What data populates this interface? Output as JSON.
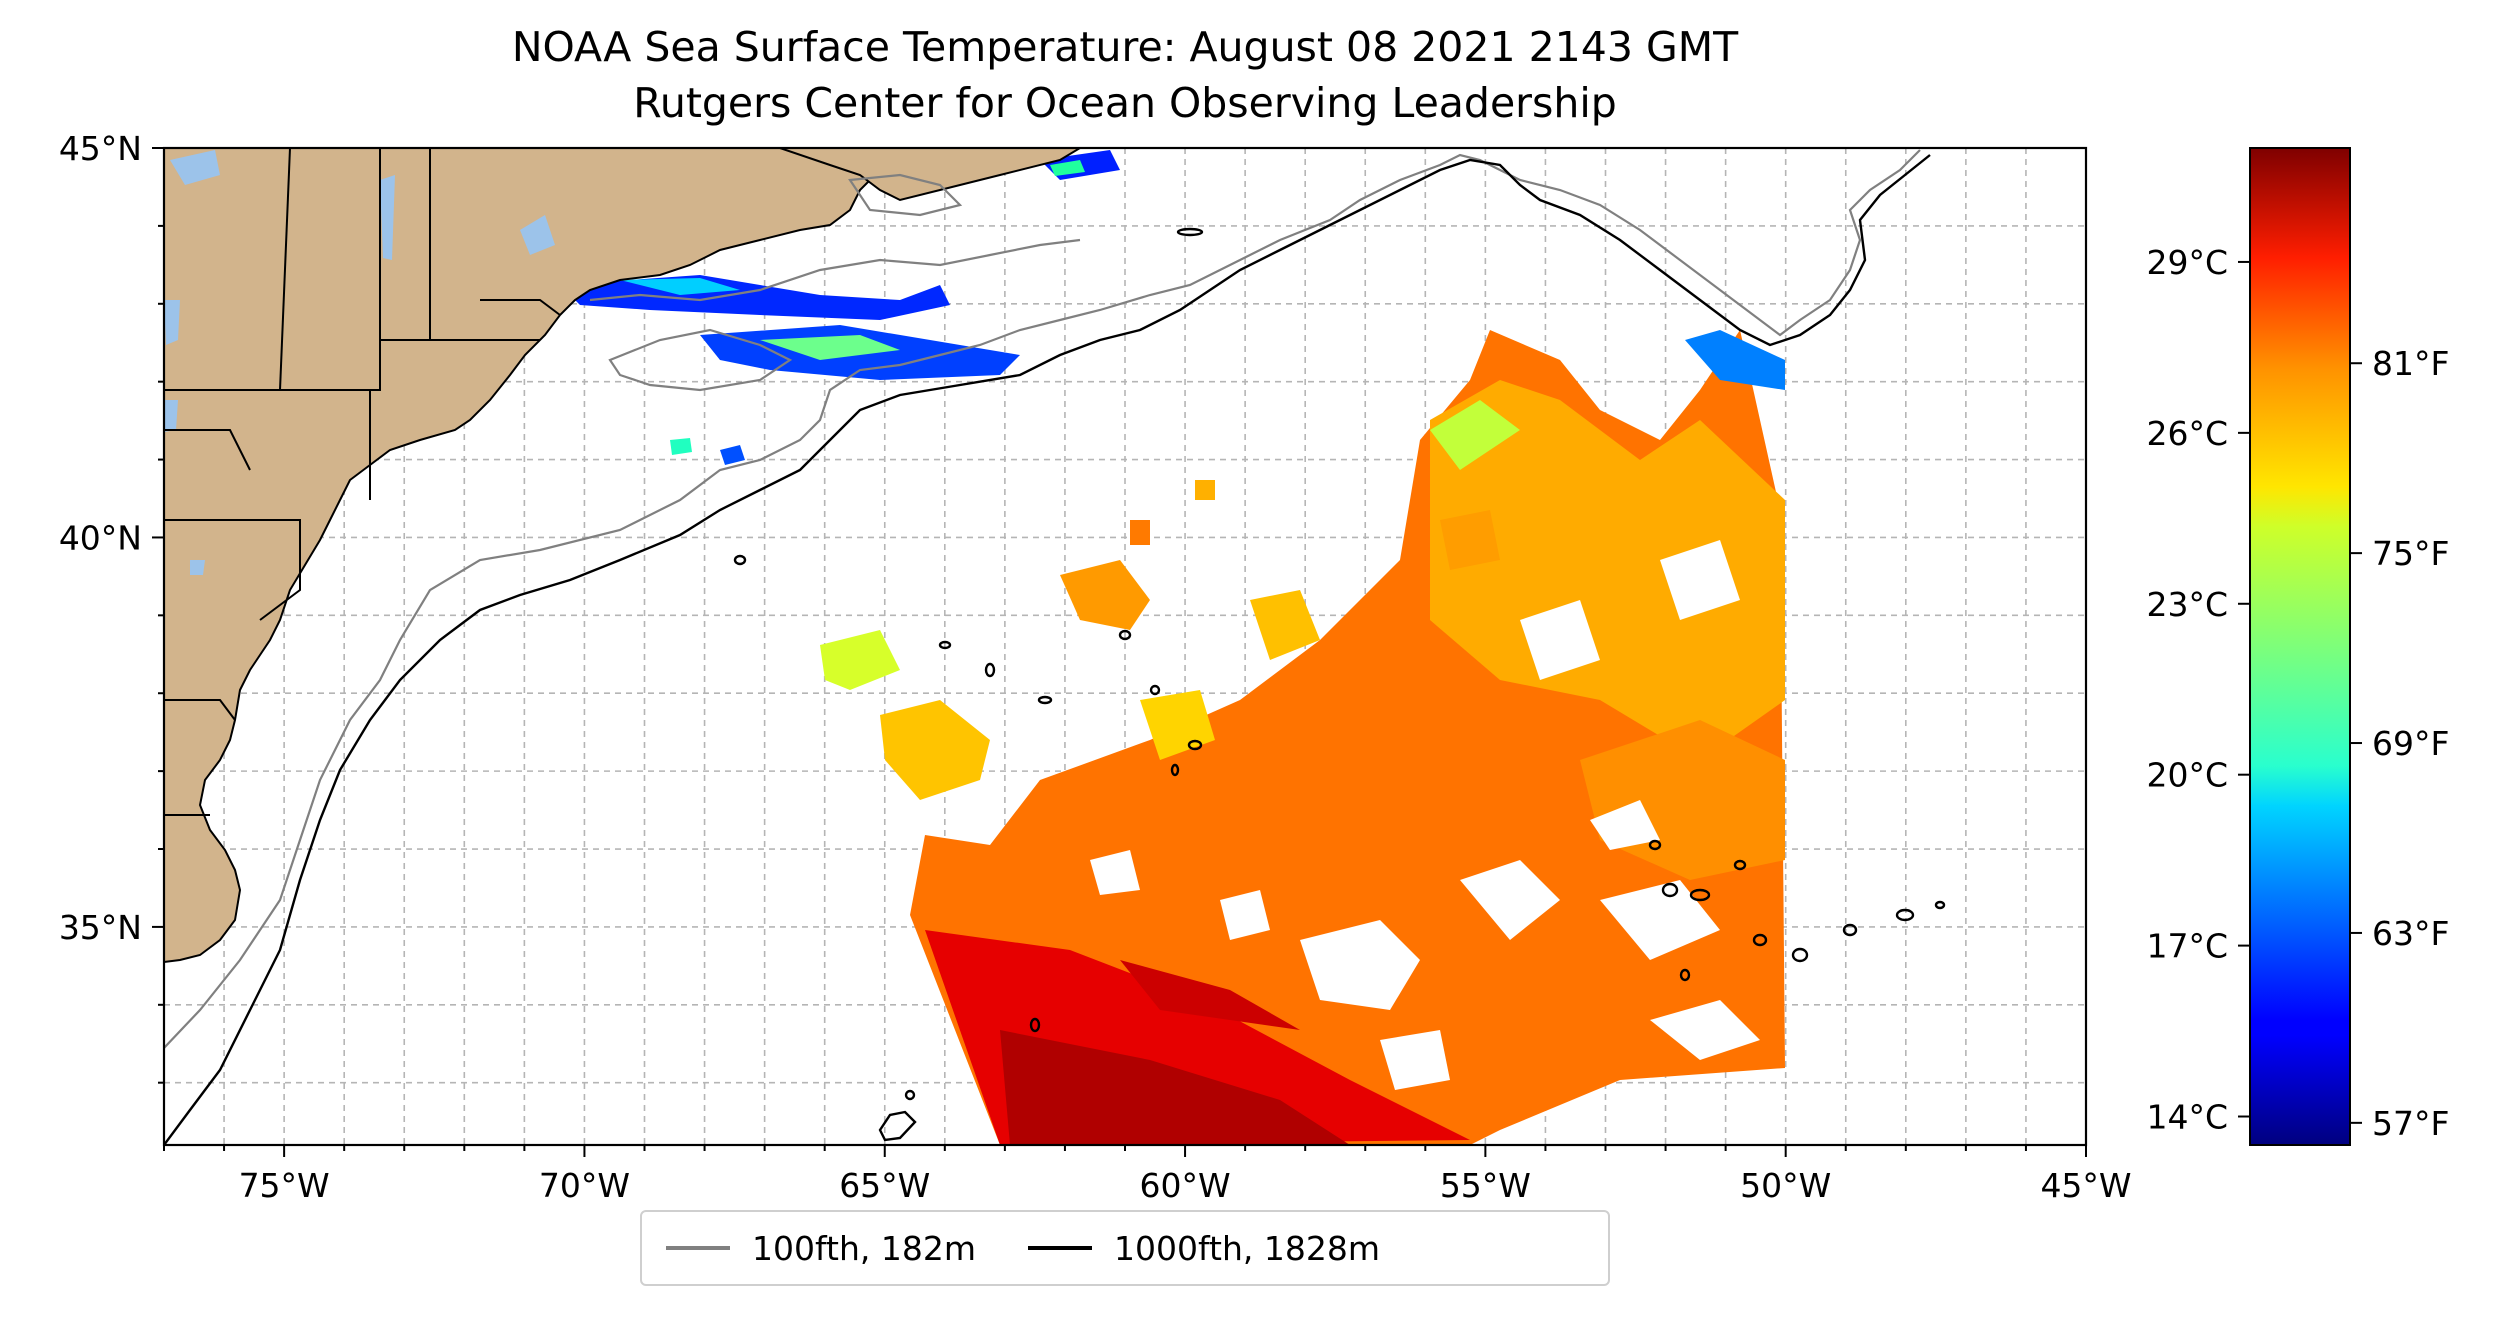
{
  "title": {
    "line1": "NOAA Sea Surface Temperature: August 08 2021 2143 GMT",
    "line2": "Rutgers Center for Ocean Observing Leadership"
  },
  "map": {
    "projection": "PlateCarree",
    "lon_range": [
      -77,
      -45
    ],
    "lat_range": [
      32.2,
      45
    ],
    "lon_ticks": [
      -75,
      -70,
      -65,
      -60,
      -55,
      -50,
      -45
    ],
    "lon_tick_labels": [
      "75°W",
      "70°W",
      "65°W",
      "60°W",
      "55°W",
      "50°W",
      "45°W"
    ],
    "lat_ticks": [
      35,
      40,
      45
    ],
    "lat_tick_labels": [
      "35°N",
      "40°N",
      "45°N"
    ],
    "gridlines": "dashed, 1° spacing",
    "land_color": "#d2b48c",
    "lake_color": "#9cc3ea",
    "ocean_color": "#ffffff"
  },
  "colorbar": {
    "colormap": "jet",
    "range_c": [
      13.5,
      31
    ],
    "celsius_ticks": [
      14,
      17,
      20,
      23,
      26,
      29
    ],
    "celsius_labels": [
      "14°C",
      "17°C",
      "20°C",
      "23°C",
      "26°C",
      "29°C"
    ],
    "fahrenheit_ticks": [
      57,
      63,
      69,
      75,
      81
    ],
    "fahrenheit_labels": [
      "57°F",
      "63°F",
      "69°F",
      "75°F",
      "81°F"
    ]
  },
  "legend": {
    "items": [
      {
        "label": "100fth, 182m",
        "color": "#808080"
      },
      {
        "label": "1000fth, 1828m",
        "color": "#000000"
      }
    ]
  }
}
